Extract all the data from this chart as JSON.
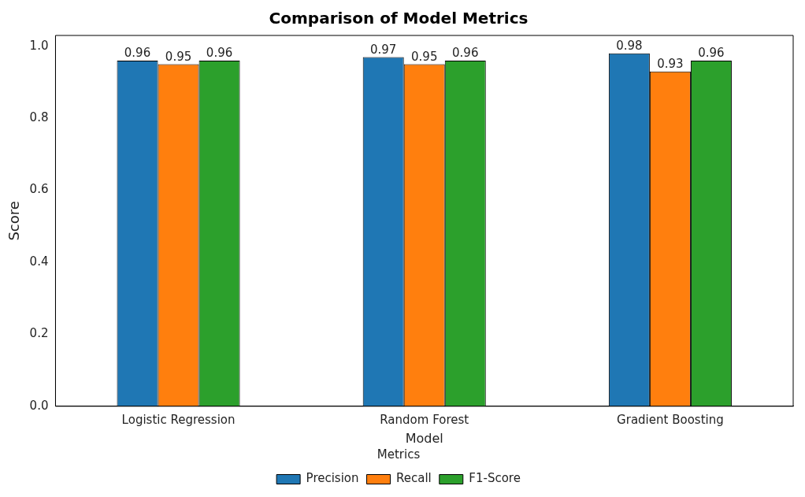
{
  "chart_data": {
    "type": "bar",
    "title": "Comparison of Model Metrics",
    "xlabel": "Model",
    "ylabel": "Score",
    "legend_title": "Metrics",
    "categories": [
      "Logistic Regression",
      "Random Forest",
      "Gradient Boosting"
    ],
    "series": [
      {
        "name": "Precision",
        "color": "#1f77b4",
        "values": [
          0.96,
          0.97,
          0.98
        ]
      },
      {
        "name": "Recall",
        "color": "#ff7f0e",
        "values": [
          0.95,
          0.95,
          0.93
        ]
      },
      {
        "name": "F1-Score",
        "color": "#2ca02c",
        "values": [
          0.96,
          0.96,
          0.96
        ]
      }
    ],
    "ylim": [
      0,
      1.03
    ],
    "yticks": [
      {
        "value": 0,
        "label": "0.0"
      },
      0.2,
      0.4,
      0.6,
      0.8,
      {
        "value": 1,
        "label": "1.0"
      }
    ],
    "grid": false,
    "legend": "bottom",
    "data_labels": true
  }
}
